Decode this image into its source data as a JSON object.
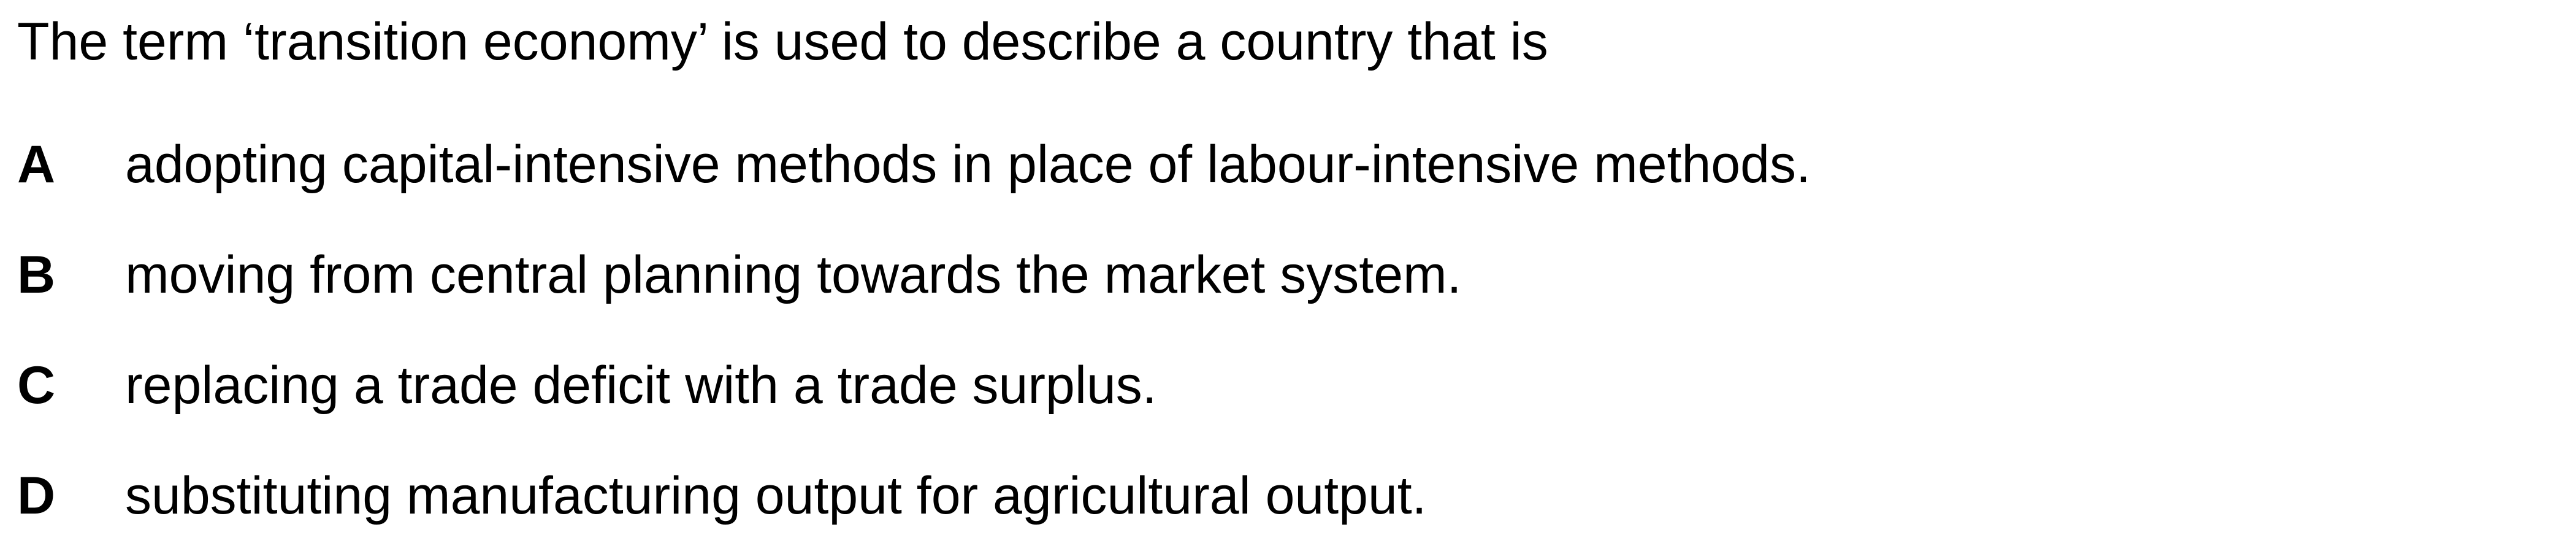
{
  "question": {
    "stem": "The term ‘transition economy’ is used to describe a country that is"
  },
  "options": [
    {
      "letter": "A",
      "text": "adopting capital-intensive methods in place of labour-intensive methods."
    },
    {
      "letter": "B",
      "text": "moving from central planning towards the market system."
    },
    {
      "letter": "C",
      "text": "replacing a trade deficit with a trade surplus."
    },
    {
      "letter": "D",
      "text": "substituting manufacturing output for agricultural output."
    }
  ]
}
